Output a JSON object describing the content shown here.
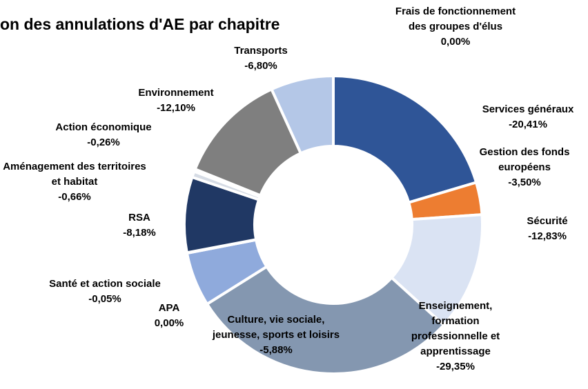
{
  "chart_data": {
    "type": "donut",
    "title": "on des annulations d'AE par chapitre",
    "categories": [
      "Frais de fonctionnement des groupes d'élus",
      "Services généraux",
      "Gestion des fonds européens",
      "Sécurité",
      "Enseignement, formation professionnelle et apprentissage",
      "Culture, vie sociale, jeunesse, sports et loisirs",
      "APA",
      "Santé et action sociale",
      "RSA",
      "Aménagement des territoires et habitat",
      "Action économique",
      "Environnement",
      "Transports"
    ],
    "values": [
      0.0,
      -20.41,
      -3.5,
      -12.83,
      -29.35,
      -5.88,
      0.0,
      -0.05,
      -8.18,
      -0.66,
      -0.26,
      -12.1,
      -6.8
    ],
    "value_labels": [
      "0,00%",
      "-20,41%",
      "-3,50%",
      "-12,83%",
      "-29,35%",
      "-5,88%",
      "0,00%",
      "-0,05%",
      "-8,18%",
      "-0,66%",
      "-0,26%",
      "-12,10%",
      "-6,80%"
    ],
    "colors": [
      "#a5a5a5",
      "#2f5597",
      "#ed7d31",
      "#dae3f3",
      "#8497b0",
      "#8faadc",
      "#ffc000",
      "#5b9bd5",
      "#203864",
      "#d6dce5",
      "#f2f2f2",
      "#7f7f7f",
      "#b4c7e7"
    ]
  }
}
